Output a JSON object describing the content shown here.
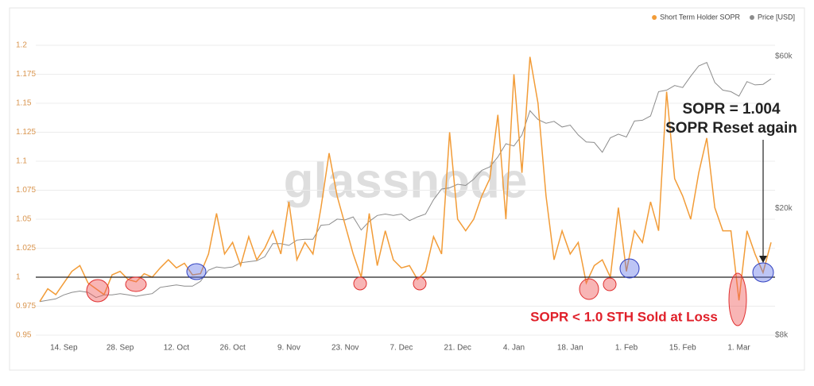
{
  "chart_data": {
    "type": "line",
    "watermark": "glassnode",
    "annotations": [
      "SOPR = 1.004",
      "SOPR Reset again",
      "SOPR < 1.0 STH Sold at Loss"
    ],
    "categories": [
      null,
      null,
      null,
      "14. Sep",
      null,
      null,
      null,
      null,
      null,
      null,
      "28. Sep",
      null,
      null,
      null,
      null,
      null,
      null,
      "12. Oct",
      null,
      null,
      null,
      null,
      null,
      null,
      "26. Oct",
      null,
      null,
      null,
      null,
      null,
      null,
      "9. Nov",
      null,
      null,
      null,
      null,
      null,
      null,
      "23. Nov",
      null,
      null,
      null,
      null,
      null,
      null,
      "7. Dec",
      null,
      null,
      null,
      null,
      null,
      null,
      "21. Dec",
      null,
      null,
      null,
      null,
      null,
      null,
      "4. Jan",
      null,
      null,
      null,
      null,
      null,
      null,
      "18. Jan",
      null,
      null,
      null,
      null,
      null,
      null,
      "1. Feb",
      null,
      null,
      null,
      null,
      null,
      null,
      "15. Feb",
      null,
      null,
      null,
      null,
      null,
      null,
      "1. Mar",
      null,
      null,
      null,
      null
    ],
    "series": [
      {
        "name": "Short Term Holder SOPR",
        "color": "#f29c38",
        "axis": "y",
        "values": [
          0.979,
          0.99,
          0.985,
          0.995,
          1.005,
          1.01,
          0.995,
          0.99,
          0.985,
          1.002,
          1.005,
          0.998,
          0.996,
          1.003,
          1.0,
          1.008,
          1.015,
          1.008,
          1.012,
          1.002,
          1.003,
          1.02,
          1.055,
          1.02,
          1.03,
          1.01,
          1.035,
          1.015,
          1.025,
          1.04,
          1.02,
          1.065,
          1.015,
          1.03,
          1.02,
          1.06,
          1.107,
          1.07,
          1.045,
          1.02,
          1.0,
          1.055,
          1.01,
          1.04,
          1.015,
          1.008,
          1.01,
          0.998,
          1.005,
          1.035,
          1.02,
          1.125,
          1.05,
          1.04,
          1.05,
          1.07,
          1.085,
          1.14,
          1.05,
          1.175,
          1.09,
          1.19,
          1.15,
          1.07,
          1.015,
          1.04,
          1.02,
          1.03,
          0.995,
          1.01,
          1.015,
          1.0,
          1.06,
          1.005,
          1.04,
          1.03,
          1.065,
          1.04,
          1.16,
          1.085,
          1.07,
          1.05,
          1.09,
          1.12,
          1.06,
          1.04,
          1.04,
          0.98,
          1.04,
          1.02,
          1.004,
          1.03
        ]
      },
      {
        "name": "Price [USD]",
        "color": "#8c8c8c",
        "axis": "y2",
        "values": [
          10200,
          10300,
          10400,
          10700,
          10900,
          11000,
          10900,
          10500,
          10700,
          10700,
          10800,
          10700,
          10600,
          10700,
          10800,
          11300,
          11400,
          11500,
          11400,
          11400,
          11800,
          12800,
          13100,
          13000,
          13100,
          13500,
          13600,
          13700,
          14100,
          15500,
          15500,
          15300,
          15900,
          16000,
          16000,
          17700,
          17800,
          18500,
          18400,
          18800,
          17100,
          18200,
          19000,
          19200,
          19000,
          19200,
          18300,
          18800,
          19200,
          21300,
          23000,
          23200,
          23800,
          23600,
          24700,
          26300,
          27000,
          29000,
          31900,
          31400,
          34000,
          40500,
          38000,
          37000,
          37500,
          36000,
          36500,
          34000,
          32300,
          32200,
          30000,
          33300,
          34200,
          33500,
          37600,
          37800,
          39000,
          46500,
          47000,
          48600,
          47900,
          52000,
          56000,
          57400,
          49700,
          47000,
          46500,
          45000,
          50000,
          48800,
          49000,
          51000
        ]
      }
    ],
    "ylim": [
      0.95,
      1.2
    ],
    "yticks": [
      0.95,
      0.975,
      1,
      1.025,
      1.05,
      1.075,
      1.1,
      1.125,
      1.15,
      1.175,
      1.2
    ],
    "y2lim": [
      8000,
      65000
    ],
    "y2_scale": "log",
    "y2ticks": [
      {
        "value": 8000,
        "label": "$8k"
      },
      {
        "value": 20000,
        "label": "$20k"
      },
      {
        "value": 60000,
        "label": "$60k"
      }
    ],
    "reference_line": 1,
    "grid": true,
    "legend": "top-right"
  }
}
